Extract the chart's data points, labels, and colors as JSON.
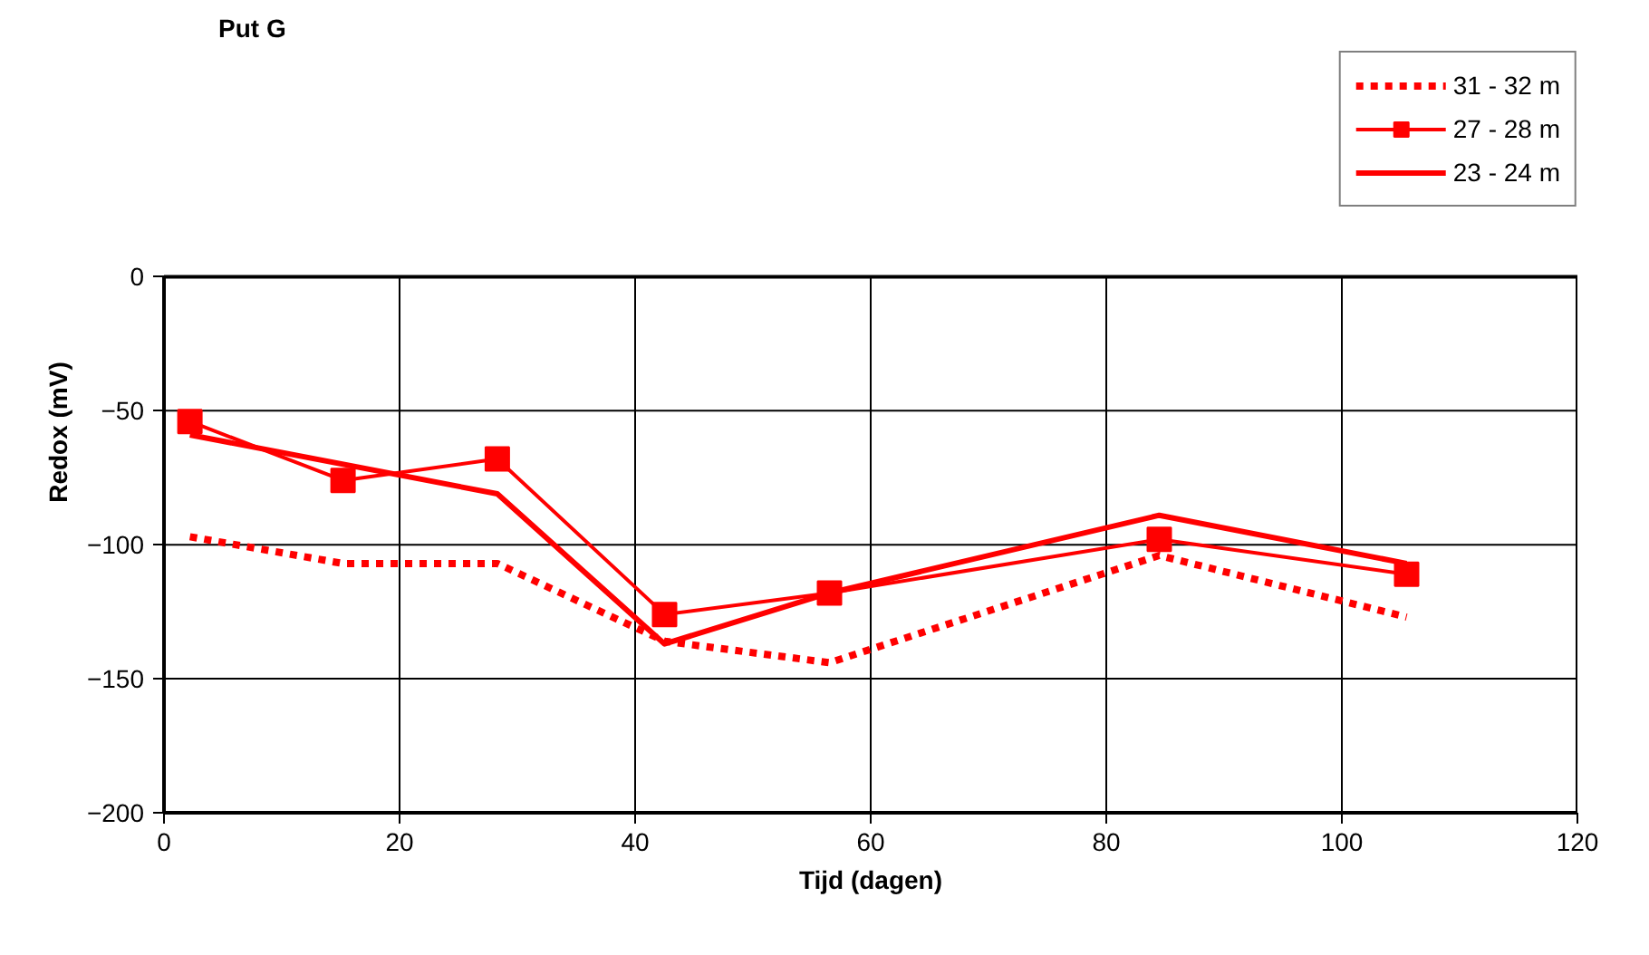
{
  "chart_data": {
    "type": "line",
    "title": "Put G",
    "xlabel": "Tijd (dagen)",
    "ylabel": "Redox (mV)",
    "xlim": [
      0,
      120
    ],
    "xticks": [
      0,
      20,
      40,
      60,
      80,
      100,
      120
    ],
    "ylim": [
      -200,
      0
    ],
    "yticks": [
      -200,
      -150,
      -100,
      -50,
      0
    ],
    "grid": true,
    "legend": "top right",
    "series": [
      {
        "name": "31 - 32 m",
        "color": "#ff0000",
        "line_style": "dotted",
        "marker": "none",
        "x": [
          2.2,
          15.2,
          28.3,
          42.5,
          56.5,
          84.5,
          105.5
        ],
        "values": [
          -97,
          -107,
          -107,
          -136,
          -144,
          -104,
          -127
        ]
      },
      {
        "name": "27 - 28 m",
        "color": "#ff0000",
        "line_style": "solid",
        "marker": "square",
        "x": [
          2.2,
          15.2,
          28.3,
          42.5,
          56.5,
          84.5,
          105.5
        ],
        "values": [
          -54,
          -76,
          -68,
          -126,
          -118,
          -98,
          -111
        ]
      },
      {
        "name": "23 - 24 m",
        "color": "#ff0000",
        "line_style": "solid",
        "marker": "none",
        "x": [
          2.2,
          28.3,
          42.5,
          56.5,
          84.5,
          105.5
        ],
        "values": [
          -59,
          -81,
          -137,
          -118,
          -89,
          -107
        ]
      }
    ]
  }
}
